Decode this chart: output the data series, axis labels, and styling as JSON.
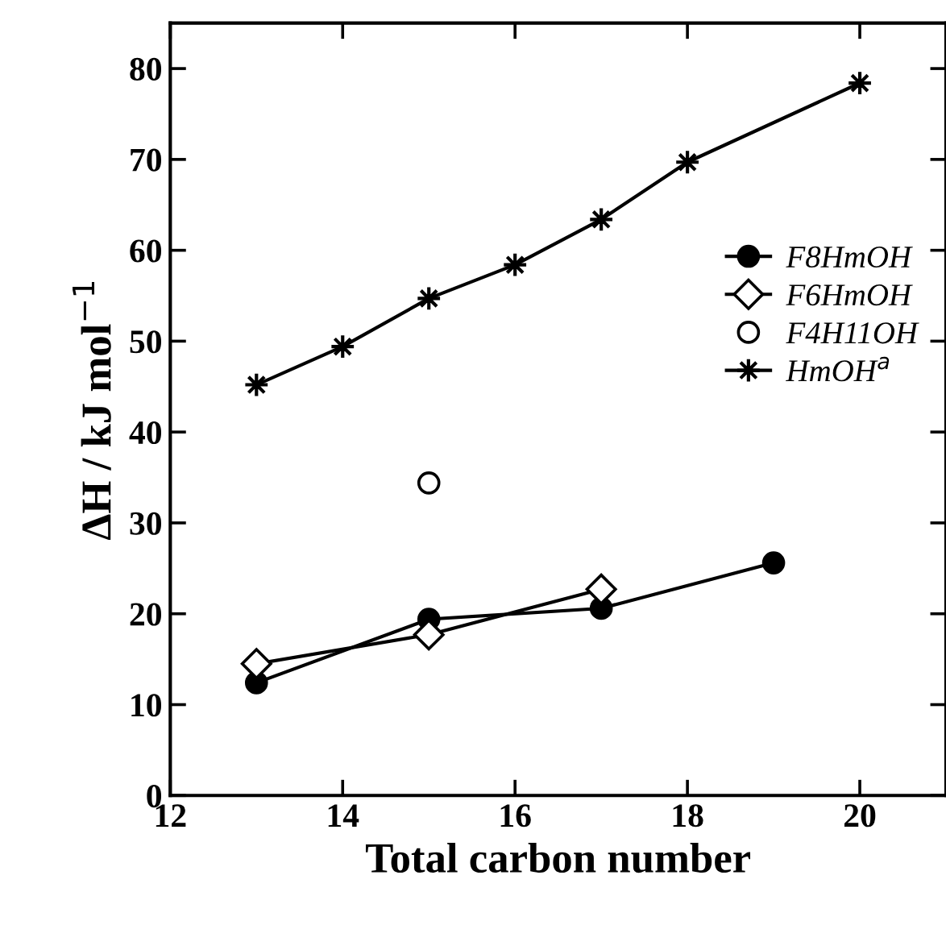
{
  "chart_data": {
    "type": "line",
    "xlabel": "Total carbon number",
    "ylabel": "ΔH / kJ mol$^{−1}$",
    "xlim": [
      12,
      21
    ],
    "ylim": [
      0,
      85
    ],
    "xticks": [
      12,
      14,
      16,
      18,
      20
    ],
    "yticks": [
      0,
      10,
      20,
      30,
      40,
      50,
      60,
      70,
      80
    ],
    "grid": false,
    "legend": "right",
    "series": [
      {
        "name": "F8HmOH",
        "color": "#000000",
        "marker": "circle",
        "x": [
          13,
          15,
          17,
          19
        ],
        "values": [
          12.4,
          19.4,
          20.6,
          25.6
        ]
      },
      {
        "name": "F6HmOH",
        "color": "#000000",
        "marker": "diamond",
        "x": [
          13,
          15,
          17
        ],
        "values": [
          14.5,
          17.7,
          22.7
        ]
      },
      {
        "name": "F4H11OH",
        "type": "scatter",
        "color": "#000000",
        "marker": "circle",
        "x": [
          15
        ],
        "values": [
          34.4
        ]
      },
      {
        "name": "HmOH$^{a}$",
        "color": "#000000",
        "marker": "star",
        "x": [
          13,
          14,
          15,
          16,
          17,
          18,
          20
        ],
        "values": [
          45.2,
          49.4,
          54.7,
          58.4,
          63.4,
          69.7,
          78.4
        ]
      }
    ]
  }
}
